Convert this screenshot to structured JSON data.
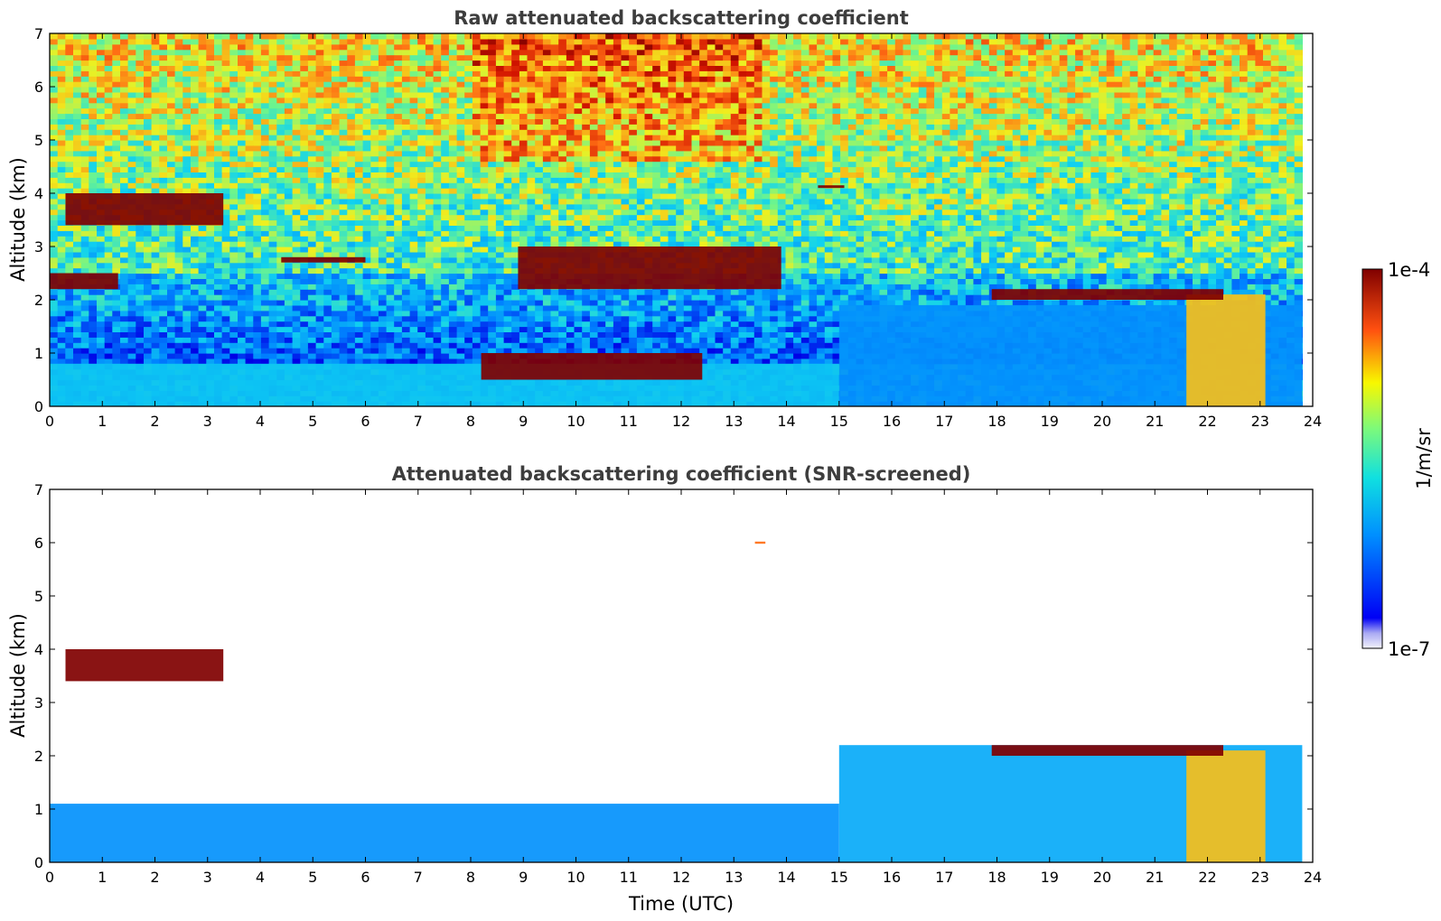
{
  "chart_data": [
    {
      "type": "heatmap",
      "title": "Raw attenuated backscattering coefficient",
      "xlabel": "",
      "ylabel": "Altitude (km)",
      "xlim": [
        0,
        24
      ],
      "ylim": [
        0,
        7
      ],
      "xticks": [
        "0",
        "1",
        "2",
        "3",
        "4",
        "5",
        "6",
        "7",
        "8",
        "9",
        "10",
        "11",
        "12",
        "13",
        "14",
        "15",
        "16",
        "17",
        "18",
        "19",
        "20",
        "21",
        "22",
        "23",
        "24"
      ],
      "yticks": [
        "0",
        "1",
        "2",
        "3",
        "4",
        "5",
        "6",
        "7"
      ],
      "data_extent_x": [
        0,
        23.8
      ],
      "colorscale": "jet (log)",
      "features": [
        {
          "kind": "molecular-signal",
          "x": [
            0,
            23.8
          ],
          "y": [
            2.5,
            7.0
          ],
          "level": 0.55
        },
        {
          "kind": "aerosol-layer",
          "x": [
            0,
            15
          ],
          "y": [
            0,
            0.8
          ],
          "level": 0.35
        },
        {
          "kind": "aerosol-layer",
          "x": [
            15,
            23.8
          ],
          "y": [
            0,
            1.9
          ],
          "level": 0.25
        },
        {
          "kind": "aerosol-plume",
          "x": [
            21.6,
            23.1
          ],
          "y": [
            0,
            2.1
          ],
          "level": 0.7
        },
        {
          "kind": "cloud",
          "x": [
            0.3,
            3.3
          ],
          "y": [
            3.4,
            4.0
          ],
          "level": 1.0
        },
        {
          "kind": "cloud",
          "x": [
            0,
            1.3
          ],
          "y": [
            2.2,
            2.5
          ],
          "level": 1.0
        },
        {
          "kind": "cloud",
          "x": [
            4.4,
            6.0
          ],
          "y": [
            2.7,
            2.8
          ],
          "level": 1.0
        },
        {
          "kind": "cloud",
          "x": [
            8.9,
            13.9
          ],
          "y": [
            2.2,
            3.0
          ],
          "level": 1.0
        },
        {
          "kind": "cloud",
          "x": [
            14.6,
            15.1
          ],
          "y": [
            4.1,
            4.15
          ],
          "level": 1.0
        },
        {
          "kind": "cloud",
          "x": [
            17.9,
            22.3
          ],
          "y": [
            2.0,
            2.2
          ],
          "level": 1.0
        },
        {
          "kind": "cloud",
          "x": [
            8.2,
            12.4
          ],
          "y": [
            0.5,
            1.0
          ],
          "level": 1.0
        }
      ]
    },
    {
      "type": "heatmap",
      "title": "Attenuated backscattering coefficient (SNR-screened)",
      "xlabel": "Time (UTC)",
      "ylabel": "Altitude (km)",
      "xlim": [
        0,
        24
      ],
      "ylim": [
        0,
        7
      ],
      "xticks": [
        "0",
        "1",
        "2",
        "3",
        "4",
        "5",
        "6",
        "7",
        "8",
        "9",
        "10",
        "11",
        "12",
        "13",
        "14",
        "15",
        "16",
        "17",
        "18",
        "19",
        "20",
        "21",
        "22",
        "23",
        "24"
      ],
      "yticks": [
        "0",
        "1",
        "2",
        "3",
        "4",
        "5",
        "6",
        "7"
      ],
      "data_extent_x": [
        0,
        23.8
      ],
      "colorscale": "jet (log)",
      "features": [
        {
          "kind": "aerosol-layer",
          "x": [
            0,
            15
          ],
          "y": [
            0,
            1.1
          ],
          "level": 0.25
        },
        {
          "kind": "aerosol-layer",
          "x": [
            15,
            23.8
          ],
          "y": [
            0,
            2.2
          ],
          "level": 0.3
        },
        {
          "kind": "aerosol-plume",
          "x": [
            21.6,
            23.1
          ],
          "y": [
            0,
            2.1
          ],
          "level": 0.7
        },
        {
          "kind": "cloud",
          "x": [
            0.3,
            3.3
          ],
          "y": [
            3.4,
            4.0
          ],
          "level": 1.0
        },
        {
          "kind": "cloud",
          "x": [
            17.9,
            22.3
          ],
          "y": [
            2.0,
            2.2
          ],
          "level": 1.0
        },
        {
          "kind": "cloud",
          "x": [
            13.4,
            13.6
          ],
          "y": [
            5.98,
            6.02
          ],
          "level": 0.8
        }
      ]
    }
  ],
  "colorbar": {
    "label": "1/m/sr",
    "min_label": "1e-7",
    "max_label": "1e-4",
    "scale": "log"
  }
}
